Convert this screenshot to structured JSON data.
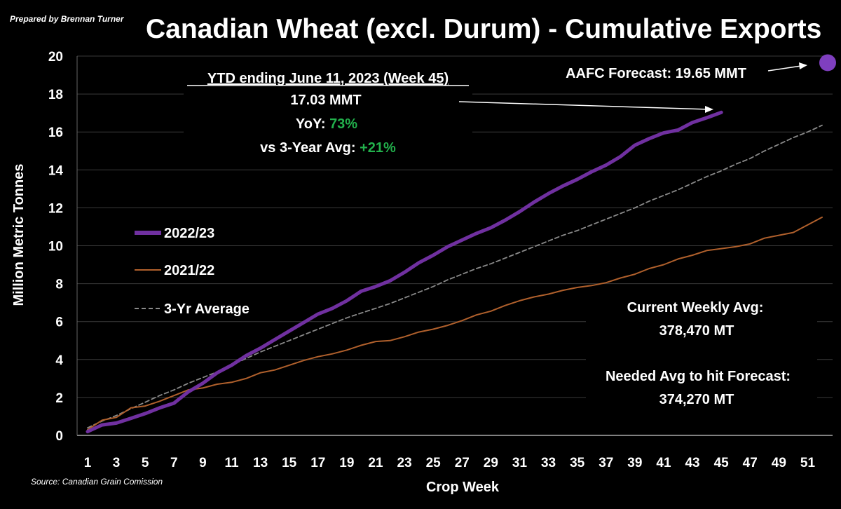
{
  "header": {
    "credit": "Prepared by Brennan Turner",
    "source": "Source: Canadian Grain Comission"
  },
  "colors": {
    "background": "#000000",
    "grid": "#3a3a3a",
    "series_2022_23": "#7030a0",
    "series_2021_22": "#b0602c",
    "series_3yr": "#8a8a8a",
    "forecast_marker": "#7f3fbf",
    "positive": "#22b14c"
  },
  "annotations": {
    "ytd_title": "YTD ending June 11, 2023 (Week 45)",
    "ytd_value": "17.03 MMT",
    "yoy_label": "YoY: ",
    "yoy_value": "73%",
    "avg_label": "vs 3-Year Avg: ",
    "avg_value": "+21%",
    "forecast_label": "AAFC Forecast: 19.65 MMT",
    "current_avg_label": "Current Weekly Avg:",
    "current_avg_value": "378,470 MT",
    "needed_avg_label": "Needed Avg to hit Forecast:",
    "needed_avg_value": "374,270 MT"
  },
  "chart_data": {
    "type": "line",
    "title": "Canadian Wheat (excl. Durum) - Cumulative Exports",
    "xlabel": "Crop Week",
    "ylabel": "Million Metric Tonnes",
    "xlim": [
      1,
      52
    ],
    "ylim": [
      0,
      20
    ],
    "x_ticks": [
      1,
      3,
      5,
      7,
      9,
      11,
      13,
      15,
      17,
      19,
      21,
      23,
      25,
      27,
      29,
      31,
      33,
      35,
      37,
      39,
      41,
      43,
      45,
      47,
      49,
      51
    ],
    "y_ticks": [
      0,
      2,
      4,
      6,
      8,
      10,
      12,
      14,
      16,
      18,
      20
    ],
    "grid": "horizontal",
    "legend": "left-middle",
    "forecast_point": {
      "x": 52,
      "y": 19.65
    },
    "series": [
      {
        "name": "2022/23",
        "style": "solid-thick",
        "x": [
          1,
          2,
          3,
          4,
          5,
          6,
          7,
          8,
          9,
          10,
          11,
          12,
          13,
          14,
          15,
          16,
          17,
          18,
          19,
          20,
          21,
          22,
          23,
          24,
          25,
          26,
          27,
          28,
          29,
          30,
          31,
          32,
          33,
          34,
          35,
          36,
          37,
          38,
          39,
          40,
          41,
          42,
          43,
          44,
          45
        ],
        "values": [
          0.2,
          0.55,
          0.65,
          0.9,
          1.15,
          1.45,
          1.7,
          2.3,
          2.75,
          3.3,
          3.7,
          4.2,
          4.6,
          5.05,
          5.5,
          5.95,
          6.4,
          6.7,
          7.1,
          7.6,
          7.85,
          8.15,
          8.6,
          9.1,
          9.5,
          9.95,
          10.3,
          10.65,
          10.95,
          11.35,
          11.8,
          12.3,
          12.75,
          13.15,
          13.5,
          13.9,
          14.25,
          14.7,
          15.3,
          15.65,
          15.95,
          16.1,
          16.5,
          16.75,
          17.03
        ]
      },
      {
        "name": "2021/22",
        "style": "solid-thin",
        "x": [
          1,
          2,
          3,
          4,
          5,
          6,
          7,
          8,
          9,
          10,
          11,
          12,
          13,
          14,
          15,
          16,
          17,
          18,
          19,
          20,
          21,
          22,
          23,
          24,
          25,
          26,
          27,
          28,
          29,
          30,
          31,
          32,
          33,
          34,
          35,
          36,
          37,
          38,
          39,
          40,
          41,
          42,
          43,
          44,
          45,
          46,
          47,
          48,
          49,
          50,
          51,
          52
        ],
        "values": [
          0.3,
          0.8,
          0.95,
          1.45,
          1.55,
          1.8,
          2.1,
          2.4,
          2.5,
          2.7,
          2.8,
          3.0,
          3.3,
          3.45,
          3.7,
          3.95,
          4.15,
          4.3,
          4.5,
          4.75,
          4.95,
          5.0,
          5.2,
          5.45,
          5.6,
          5.8,
          6.05,
          6.35,
          6.55,
          6.85,
          7.1,
          7.3,
          7.45,
          7.65,
          7.8,
          7.9,
          8.05,
          8.3,
          8.5,
          8.8,
          9.0,
          9.3,
          9.5,
          9.75,
          9.85,
          9.95,
          10.1,
          10.4,
          10.55,
          10.7,
          11.1,
          11.5
        ]
      },
      {
        "name": "3-Yr Average",
        "style": "dashed",
        "x": [
          1,
          2,
          3,
          4,
          5,
          6,
          7,
          8,
          9,
          10,
          11,
          12,
          13,
          14,
          15,
          16,
          17,
          18,
          19,
          20,
          21,
          22,
          23,
          24,
          25,
          26,
          27,
          28,
          29,
          30,
          31,
          32,
          33,
          34,
          35,
          36,
          37,
          38,
          39,
          40,
          41,
          42,
          43,
          44,
          45,
          46,
          47,
          48,
          49,
          50,
          51,
          52
        ],
        "values": [
          0.4,
          0.75,
          1.05,
          1.4,
          1.75,
          2.1,
          2.4,
          2.75,
          3.05,
          3.35,
          3.7,
          4.05,
          4.4,
          4.7,
          5.0,
          5.3,
          5.6,
          5.9,
          6.2,
          6.45,
          6.7,
          6.95,
          7.25,
          7.55,
          7.85,
          8.2,
          8.5,
          8.8,
          9.05,
          9.35,
          9.65,
          9.95,
          10.25,
          10.55,
          10.8,
          11.1,
          11.4,
          11.7,
          12.0,
          12.35,
          12.65,
          12.95,
          13.3,
          13.65,
          13.95,
          14.3,
          14.6,
          15.0,
          15.35,
          15.7,
          16.0,
          16.35
        ]
      }
    ]
  }
}
